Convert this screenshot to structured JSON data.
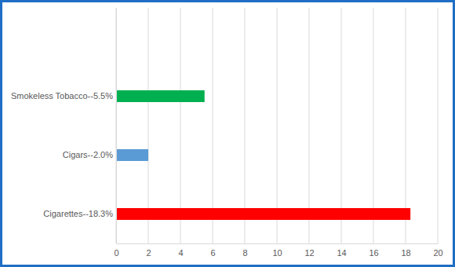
{
  "chart_data": {
    "type": "bar",
    "orientation": "horizontal",
    "categories": [
      "Cigarettes--18.3%",
      "Cigars--2.0%",
      "Smokeless Tobacco--5.5%",
      null
    ],
    "values": [
      18.3,
      2.0,
      5.5,
      null
    ],
    "colors": [
      "#ff0000",
      "#5b9bd5",
      "#00b050",
      "#a5a5a5"
    ],
    "xlim": [
      0,
      20
    ],
    "xticks": [
      0,
      2,
      4,
      6,
      8,
      10,
      12,
      14,
      16,
      18,
      20
    ],
    "grid": true
  }
}
